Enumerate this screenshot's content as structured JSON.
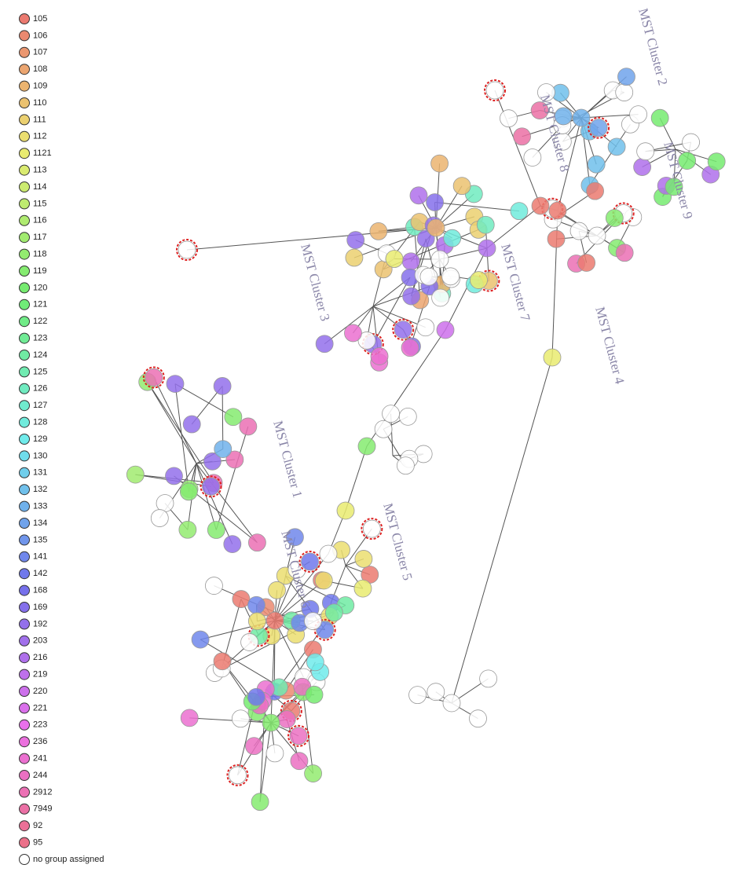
{
  "legend": {
    "items": [
      {
        "label": "105",
        "color": "hsl(5,75%,68%)"
      },
      {
        "label": "106",
        "color": "hsl(12,75%,68%)"
      },
      {
        "label": "107",
        "color": "hsl(19,75%,68%)"
      },
      {
        "label": "108",
        "color": "hsl(26,75%,68%)"
      },
      {
        "label": "109",
        "color": "hsl(33,75%,68%)"
      },
      {
        "label": "110",
        "color": "hsl(40,75%,68%)"
      },
      {
        "label": "111",
        "color": "hsl(47,75%,68%)"
      },
      {
        "label": "112",
        "color": "hsl(54,75%,68%)"
      },
      {
        "label": "1121",
        "color": "hsl(61,75%,68%)"
      },
      {
        "label": "113",
        "color": "hsl(68,75%,68%)"
      },
      {
        "label": "114",
        "color": "hsl(75,75%,68%)"
      },
      {
        "label": "115",
        "color": "hsl(82,75%,68%)"
      },
      {
        "label": "116",
        "color": "hsl(89,75%,68%)"
      },
      {
        "label": "117",
        "color": "hsl(96,75%,68%)"
      },
      {
        "label": "118",
        "color": "hsl(103,75%,68%)"
      },
      {
        "label": "119",
        "color": "hsl(110,75%,68%)"
      },
      {
        "label": "120",
        "color": "hsl(117,75%,68%)"
      },
      {
        "label": "121",
        "color": "hsl(124,75%,68%)"
      },
      {
        "label": "122",
        "color": "hsl(131,75%,68%)"
      },
      {
        "label": "123",
        "color": "hsl(138,75%,68%)"
      },
      {
        "label": "124",
        "color": "hsl(145,75%,68%)"
      },
      {
        "label": "125",
        "color": "hsl(152,75%,68%)"
      },
      {
        "label": "126",
        "color": "hsl(159,75%,68%)"
      },
      {
        "label": "127",
        "color": "hsl(166,75%,68%)"
      },
      {
        "label": "128",
        "color": "hsl(173,75%,68%)"
      },
      {
        "label": "129",
        "color": "hsl(180,75%,68%)"
      },
      {
        "label": "130",
        "color": "hsl(187,75%,68%)"
      },
      {
        "label": "131",
        "color": "hsl(194,75%,68%)"
      },
      {
        "label": "132",
        "color": "hsl(201,75%,68%)"
      },
      {
        "label": "133",
        "color": "hsl(208,75%,68%)"
      },
      {
        "label": "134",
        "color": "hsl(215,75%,68%)"
      },
      {
        "label": "135",
        "color": "hsl(222,75%,68%)"
      },
      {
        "label": "141",
        "color": "hsl(229,75%,68%)"
      },
      {
        "label": "142",
        "color": "hsl(236,75%,68%)"
      },
      {
        "label": "168",
        "color": "hsl(243,75%,68%)"
      },
      {
        "label": "169",
        "color": "hsl(250,75%,68%)"
      },
      {
        "label": "192",
        "color": "hsl(257,75%,68%)"
      },
      {
        "label": "203",
        "color": "hsl(264,75%,68%)"
      },
      {
        "label": "216",
        "color": "hsl(271,75%,68%)"
      },
      {
        "label": "219",
        "color": "hsl(278,75%,68%)"
      },
      {
        "label": "220",
        "color": "hsl(285,75%,68%)"
      },
      {
        "label": "221",
        "color": "hsl(292,75%,68%)"
      },
      {
        "label": "223",
        "color": "hsl(299,75%,68%)"
      },
      {
        "label": "236",
        "color": "hsl(306,75%,68%)"
      },
      {
        "label": "241",
        "color": "hsl(313,75%,68%)"
      },
      {
        "label": "244",
        "color": "hsl(320,75%,68%)"
      },
      {
        "label": "2912",
        "color": "hsl(327,75%,68%)"
      },
      {
        "label": "7949",
        "color": "hsl(334,75%,68%)"
      },
      {
        "label": "92",
        "color": "hsl(341,75%,68%)"
      },
      {
        "label": "95",
        "color": "hsl(348,75%,68%)"
      },
      {
        "label": "no group assigned",
        "color": "#ffffff"
      }
    ]
  },
  "clusters": [
    "MST Cluster 1",
    "MST Cluster 2",
    "MST Cluster 3",
    "MST Cluster 4",
    "MST Cluster 5",
    "MST Cluster 6",
    "MST Cluster 7",
    "MST Cluster 8",
    "MST Cluster 9"
  ]
}
